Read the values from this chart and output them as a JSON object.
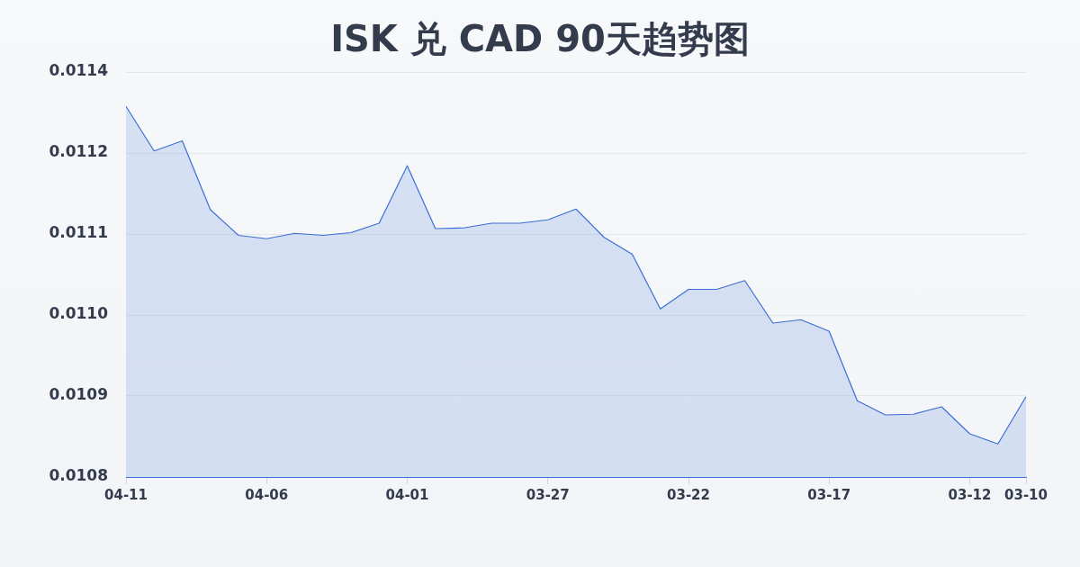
{
  "chart_data": {
    "type": "area",
    "title": "ISK 兑 CAD 90天趋势图",
    "categories": [
      "04-11",
      null,
      null,
      null,
      null,
      "04-06",
      null,
      null,
      null,
      null,
      "04-01",
      null,
      null,
      null,
      null,
      "03-27",
      null,
      null,
      null,
      null,
      "03-22",
      null,
      null,
      null,
      null,
      "03-17",
      null,
      null,
      null,
      null,
      "03-12",
      null,
      "03-10"
    ],
    "series": [
      {
        "color": "#3b6fd4",
        "values": [
          0.011309,
          0.011243,
          0.011258,
          0.011156,
          0.011118,
          0.011113,
          0.011121,
          0.011118,
          0.011122,
          0.011136,
          0.011221,
          0.011128,
          0.011129,
          0.011136,
          0.011136,
          0.011141,
          0.011157,
          0.011115,
          0.01109,
          0.011009,
          0.011038,
          0.011038,
          0.011051,
          0.010988,
          0.010993,
          0.010976,
          0.010873,
          0.010852,
          0.010853,
          0.010864,
          0.010824,
          0.010809,
          0.010879
        ]
      }
    ],
    "ylim": [
      0.01076,
      0.01136
    ],
    "yticks": [
      {
        "value": 0.01076,
        "label": "0.0108"
      },
      {
        "value": 0.01088,
        "label": "0.0109"
      },
      {
        "value": 0.011,
        "label": "0.0110"
      },
      {
        "value": 0.01112,
        "label": "0.0111"
      },
      {
        "value": 0.01124,
        "label": "0.0112"
      },
      {
        "value": 0.01136,
        "label": "0.0114"
      }
    ],
    "grid": "y",
    "marker": "none"
  }
}
